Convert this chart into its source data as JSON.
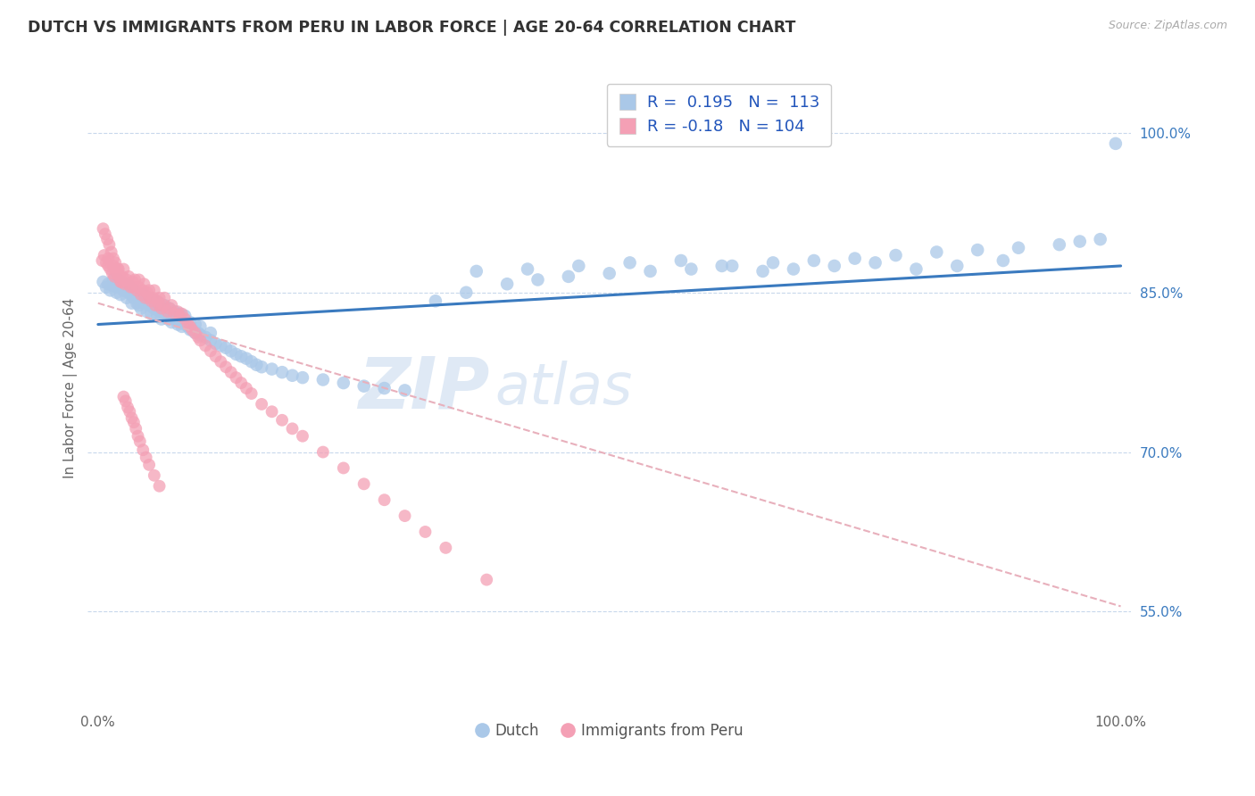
{
  "title": "DUTCH VS IMMIGRANTS FROM PERU IN LABOR FORCE | AGE 20-64 CORRELATION CHART",
  "source": "Source: ZipAtlas.com",
  "ylabel": "In Labor Force | Age 20-64",
  "xlim": [
    -0.01,
    1.01
  ],
  "ylim": [
    0.46,
    1.06
  ],
  "y_tick_values": [
    0.55,
    0.7,
    0.85,
    1.0
  ],
  "y_tick_labels": [
    "55.0%",
    "70.0%",
    "85.0%",
    "100.0%"
  ],
  "watermark_zip": "ZIP",
  "watermark_atlas": "atlas",
  "dutch_R": 0.195,
  "dutch_N": 113,
  "peru_R": -0.18,
  "peru_N": 104,
  "dutch_color": "#aac8e8",
  "peru_color": "#f4a0b5",
  "dutch_line_color": "#3a7abf",
  "peru_line_color": "#e8b0bc",
  "legend_text_color": "#2255bb",
  "background_color": "#ffffff",
  "grid_color": "#c8d8ec",
  "title_color": "#333333",
  "dutch_scatter_x": [
    0.005,
    0.008,
    0.01,
    0.012,
    0.015,
    0.015,
    0.018,
    0.02,
    0.02,
    0.022,
    0.025,
    0.025,
    0.028,
    0.03,
    0.03,
    0.032,
    0.033,
    0.035,
    0.035,
    0.038,
    0.04,
    0.04,
    0.042,
    0.045,
    0.045,
    0.048,
    0.05,
    0.05,
    0.052,
    0.055,
    0.055,
    0.058,
    0.06,
    0.06,
    0.062,
    0.065,
    0.065,
    0.068,
    0.07,
    0.07,
    0.072,
    0.075,
    0.075,
    0.078,
    0.08,
    0.08,
    0.082,
    0.085,
    0.085,
    0.088,
    0.09,
    0.09,
    0.092,
    0.095,
    0.095,
    0.098,
    0.1,
    0.1,
    0.105,
    0.11,
    0.11,
    0.115,
    0.12,
    0.125,
    0.13,
    0.135,
    0.14,
    0.145,
    0.15,
    0.155,
    0.16,
    0.17,
    0.18,
    0.19,
    0.2,
    0.22,
    0.24,
    0.26,
    0.28,
    0.3,
    0.33,
    0.36,
    0.4,
    0.43,
    0.46,
    0.5,
    0.54,
    0.58,
    0.62,
    0.66,
    0.7,
    0.74,
    0.78,
    0.82,
    0.86,
    0.9,
    0.94,
    0.96,
    0.98,
    0.995,
    0.37,
    0.42,
    0.47,
    0.52,
    0.57,
    0.61,
    0.65,
    0.68,
    0.72,
    0.76,
    0.8,
    0.84,
    0.885
  ],
  "dutch_scatter_y": [
    0.86,
    0.855,
    0.858,
    0.852,
    0.856,
    0.862,
    0.85,
    0.855,
    0.862,
    0.848,
    0.852,
    0.858,
    0.845,
    0.85,
    0.856,
    0.848,
    0.84,
    0.845,
    0.852,
    0.84,
    0.838,
    0.845,
    0.835,
    0.84,
    0.848,
    0.832,
    0.838,
    0.845,
    0.83,
    0.835,
    0.842,
    0.828,
    0.832,
    0.84,
    0.825,
    0.83,
    0.838,
    0.825,
    0.828,
    0.835,
    0.822,
    0.825,
    0.832,
    0.82,
    0.822,
    0.83,
    0.818,
    0.82,
    0.828,
    0.818,
    0.815,
    0.822,
    0.815,
    0.812,
    0.82,
    0.812,
    0.81,
    0.818,
    0.808,
    0.805,
    0.812,
    0.802,
    0.8,
    0.798,
    0.795,
    0.792,
    0.79,
    0.788,
    0.785,
    0.782,
    0.78,
    0.778,
    0.775,
    0.772,
    0.77,
    0.768,
    0.765,
    0.762,
    0.76,
    0.758,
    0.842,
    0.85,
    0.858,
    0.862,
    0.865,
    0.868,
    0.87,
    0.872,
    0.875,
    0.878,
    0.88,
    0.882,
    0.885,
    0.888,
    0.89,
    0.892,
    0.895,
    0.898,
    0.9,
    0.99,
    0.87,
    0.872,
    0.875,
    0.878,
    0.88,
    0.875,
    0.87,
    0.872,
    0.875,
    0.878,
    0.872,
    0.875,
    0.88
  ],
  "peru_scatter_x": [
    0.004,
    0.006,
    0.008,
    0.01,
    0.01,
    0.012,
    0.014,
    0.015,
    0.016,
    0.018,
    0.02,
    0.02,
    0.022,
    0.024,
    0.025,
    0.026,
    0.028,
    0.03,
    0.03,
    0.032,
    0.034,
    0.035,
    0.036,
    0.038,
    0.04,
    0.04,
    0.042,
    0.044,
    0.045,
    0.046,
    0.048,
    0.05,
    0.05,
    0.052,
    0.054,
    0.055,
    0.056,
    0.058,
    0.06,
    0.06,
    0.062,
    0.064,
    0.065,
    0.068,
    0.07,
    0.072,
    0.075,
    0.078,
    0.08,
    0.082,
    0.085,
    0.088,
    0.09,
    0.092,
    0.095,
    0.098,
    0.1,
    0.105,
    0.11,
    0.115,
    0.12,
    0.125,
    0.13,
    0.135,
    0.14,
    0.145,
    0.15,
    0.16,
    0.17,
    0.18,
    0.19,
    0.2,
    0.22,
    0.24,
    0.26,
    0.28,
    0.3,
    0.32,
    0.34,
    0.38,
    0.005,
    0.007,
    0.009,
    0.011,
    0.013,
    0.015,
    0.017,
    0.019,
    0.021,
    0.023,
    0.025,
    0.027,
    0.029,
    0.031,
    0.033,
    0.035,
    0.037,
    0.039,
    0.041,
    0.044,
    0.047,
    0.05,
    0.055,
    0.06
  ],
  "peru_scatter_y": [
    0.88,
    0.885,
    0.878,
    0.875,
    0.882,
    0.872,
    0.868,
    0.875,
    0.865,
    0.87,
    0.865,
    0.872,
    0.86,
    0.865,
    0.872,
    0.858,
    0.862,
    0.858,
    0.865,
    0.855,
    0.86,
    0.855,
    0.862,
    0.852,
    0.855,
    0.862,
    0.848,
    0.852,
    0.858,
    0.845,
    0.85,
    0.845,
    0.852,
    0.842,
    0.845,
    0.852,
    0.838,
    0.842,
    0.838,
    0.845,
    0.835,
    0.838,
    0.845,
    0.832,
    0.835,
    0.838,
    0.83,
    0.832,
    0.828,
    0.83,
    0.825,
    0.82,
    0.818,
    0.815,
    0.812,
    0.808,
    0.805,
    0.8,
    0.795,
    0.79,
    0.785,
    0.78,
    0.775,
    0.77,
    0.765,
    0.76,
    0.755,
    0.745,
    0.738,
    0.73,
    0.722,
    0.715,
    0.7,
    0.685,
    0.67,
    0.655,
    0.64,
    0.625,
    0.61,
    0.58,
    0.91,
    0.905,
    0.9,
    0.895,
    0.888,
    0.882,
    0.878,
    0.872,
    0.865,
    0.86,
    0.752,
    0.748,
    0.742,
    0.738,
    0.732,
    0.728,
    0.722,
    0.715,
    0.71,
    0.702,
    0.695,
    0.688,
    0.678,
    0.668
  ]
}
